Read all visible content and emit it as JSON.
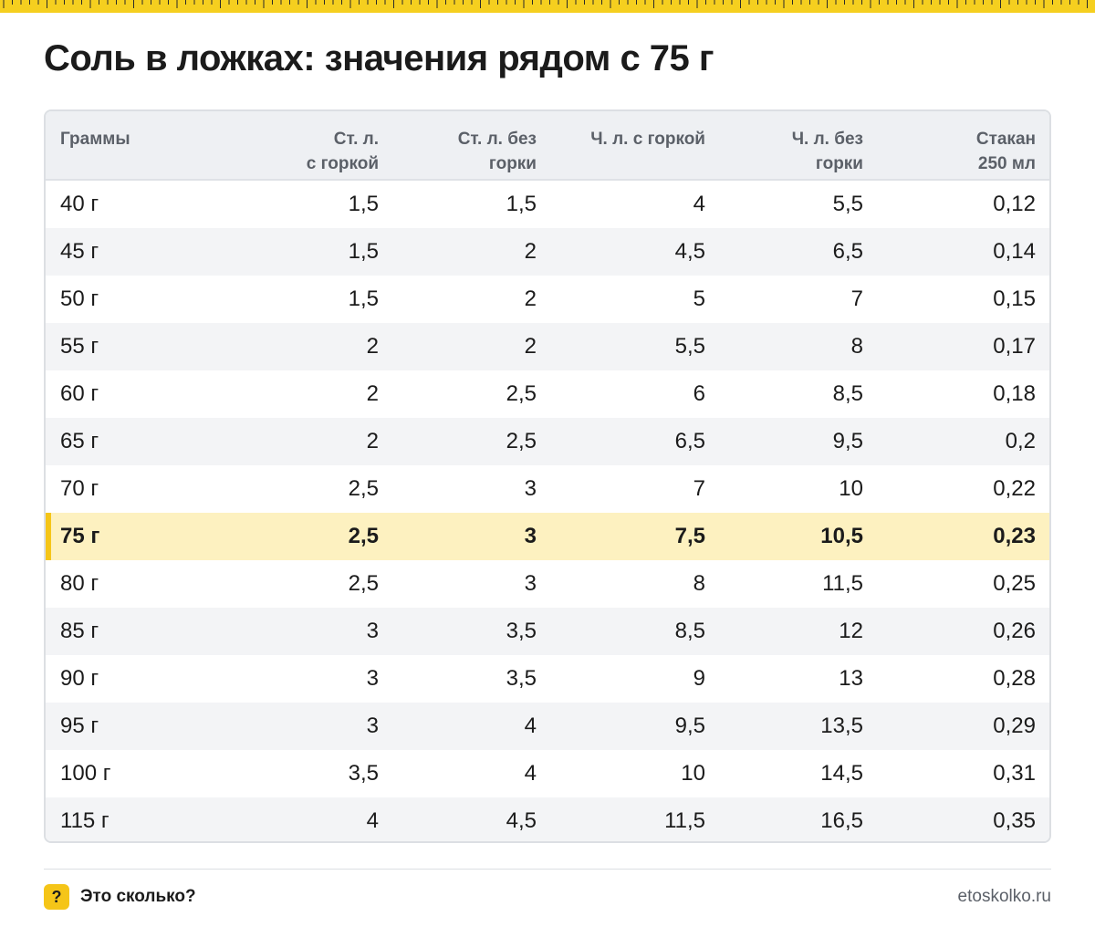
{
  "title": "Соль в ложках: значения рядом с 75 г",
  "colors": {
    "accent": "#f5c518",
    "highlight_row": "#fdf1c0",
    "header_bg": "#eef0f3"
  },
  "table": {
    "headers": [
      "Граммы",
      "Ст. л.\nс горкой",
      "Ст. л. без\nгорки",
      "Ч. л. с горкой",
      "Ч. л. без\nгорки",
      "Стакан\n250 мл"
    ],
    "highlight_row_index": 7,
    "rows": [
      [
        "40 г",
        "1,5",
        "1,5",
        "4",
        "5,5",
        "0,12"
      ],
      [
        "45 г",
        "1,5",
        "2",
        "4,5",
        "6,5",
        "0,14"
      ],
      [
        "50 г",
        "1,5",
        "2",
        "5",
        "7",
        "0,15"
      ],
      [
        "55 г",
        "2",
        "2",
        "5,5",
        "8",
        "0,17"
      ],
      [
        "60 г",
        "2",
        "2,5",
        "6",
        "8,5",
        "0,18"
      ],
      [
        "65 г",
        "2",
        "2,5",
        "6,5",
        "9,5",
        "0,2"
      ],
      [
        "70 г",
        "2,5",
        "3",
        "7",
        "10",
        "0,22"
      ],
      [
        "75 г",
        "2,5",
        "3",
        "7,5",
        "10,5",
        "0,23"
      ],
      [
        "80 г",
        "2,5",
        "3",
        "8",
        "11,5",
        "0,25"
      ],
      [
        "85 г",
        "3",
        "3,5",
        "8,5",
        "12",
        "0,26"
      ],
      [
        "90 г",
        "3",
        "3,5",
        "9",
        "13",
        "0,28"
      ],
      [
        "95 г",
        "3",
        "4",
        "9,5",
        "13,5",
        "0,29"
      ],
      [
        "100 г",
        "3,5",
        "4",
        "10",
        "14,5",
        "0,31"
      ],
      [
        "115 г",
        "4",
        "4,5",
        "11,5",
        "16,5",
        "0,35"
      ]
    ]
  },
  "footer": {
    "badge_icon": "question-mark-icon",
    "badge_text": "?",
    "brand": "Это сколько?",
    "site": "etoskolko.ru"
  }
}
